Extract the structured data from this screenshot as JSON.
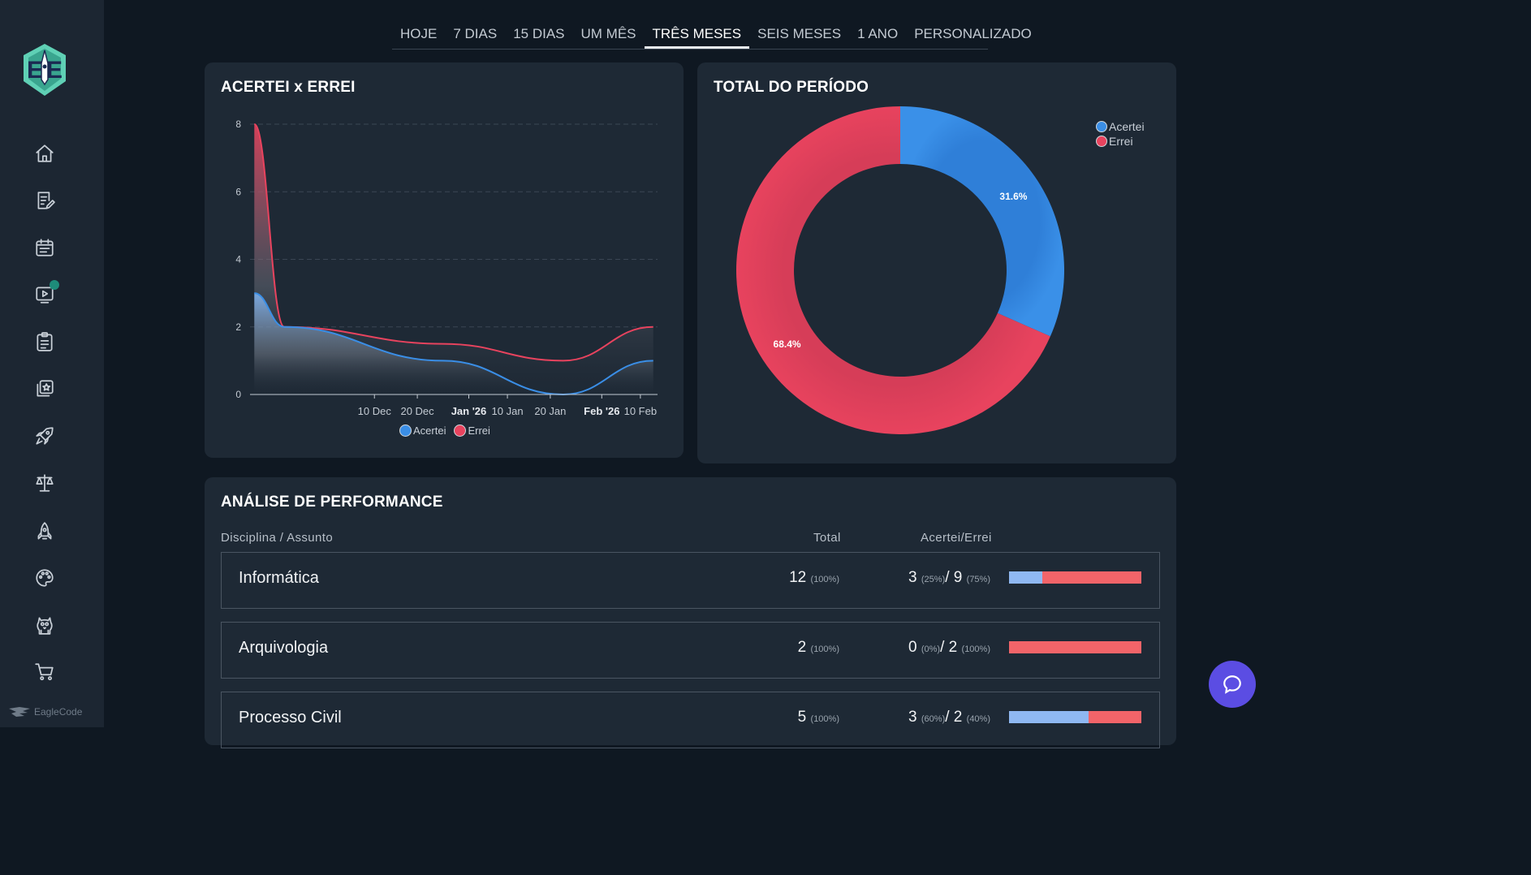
{
  "brand": {
    "name": "EagleCode"
  },
  "tabs": [
    {
      "label": "HOJE",
      "active": false
    },
    {
      "label": "7 DIAS",
      "active": false
    },
    {
      "label": "15 DIAS",
      "active": false
    },
    {
      "label": "UM MÊS",
      "active": false
    },
    {
      "label": "TRÊS MESES",
      "active": true
    },
    {
      "label": "SEIS MESES",
      "active": false
    },
    {
      "label": "1 ANO",
      "active": false
    },
    {
      "label": "PERSONALIZADO",
      "active": false
    }
  ],
  "sidebar": {
    "icons": [
      "home-icon",
      "edit-document-icon",
      "calendar-icon",
      "video-play-icon",
      "clipboard-icon",
      "star-cards-icon",
      "rocket-icon",
      "scale-icon",
      "rocket-launch-icon",
      "palette-icon",
      "mascot-icon",
      "cart-icon"
    ]
  },
  "line_card": {
    "title": "ACERTEI x ERREI",
    "legend": [
      "Acertei",
      "Errei"
    ]
  },
  "pie_card": {
    "title": "TOTAL DO PERÍODO",
    "legend": [
      "Acertei",
      "Errei"
    ]
  },
  "colors": {
    "acertei": "#3a8ee6",
    "errei": "#e8435e"
  },
  "chart_data": [
    {
      "type": "area",
      "title": "ACERTEI x ERREI",
      "x_ticks": [
        "10 Dec",
        "20 Dec",
        "Jan '26",
        "10 Jan",
        "20 Jan",
        "Feb '26",
        "10 Feb"
      ],
      "y_ticks": [
        "0",
        "2",
        "4",
        "6",
        "8"
      ],
      "ylim": [
        0,
        8
      ],
      "grid": true,
      "legend_position": "bottom",
      "x": [
        "2025-11-12",
        "2025-11-19",
        "2025-12-26",
        "2026-01-23",
        "2026-02-13"
      ],
      "series": [
        {
          "name": "Acertei",
          "values": [
            3,
            2,
            1,
            0,
            1
          ]
        },
        {
          "name": "Errei",
          "values": [
            8,
            2,
            1.5,
            1,
            2
          ]
        }
      ]
    },
    {
      "type": "pie",
      "title": "TOTAL DO PERÍODO",
      "categories": [
        "Acertei",
        "Errei"
      ],
      "values": [
        31.6,
        68.4
      ],
      "labels": [
        "31.6%",
        "68.4%"
      ],
      "legend_position": "top-right"
    }
  ],
  "performance": {
    "title": "ANÁLISE DE PERFORMANCE",
    "headers": {
      "subject": "Disciplina / Assunto",
      "total": "Total",
      "ratio": "Acertei/Errei"
    },
    "rows": [
      {
        "name": "Informática",
        "total": "12",
        "total_pct": "(100%)",
        "acertei": "3",
        "acertei_pct": "(25%)",
        "errei": "9",
        "errei_pct": "(75%)",
        "acertei_frac": 0.25
      },
      {
        "name": "Arquivologia",
        "total": "2",
        "total_pct": "(100%)",
        "acertei": "0",
        "acertei_pct": "(0%)",
        "errei": "2",
        "errei_pct": "(100%)",
        "acertei_frac": 0.0
      },
      {
        "name": "Processo Civil",
        "total": "5",
        "total_pct": "(100%)",
        "acertei": "3",
        "acertei_pct": "(60%)",
        "errei": "2",
        "errei_pct": "(40%)",
        "acertei_frac": 0.6
      }
    ]
  }
}
